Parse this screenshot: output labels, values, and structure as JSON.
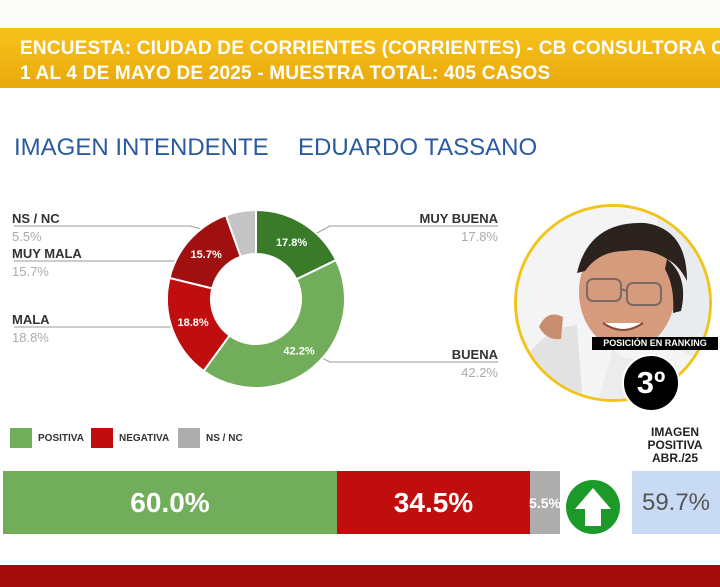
{
  "header": {
    "line1": "ENCUESTA: CIUDAD DE CORRIENTES (CORRIENTES) - CB CONSULTORA OP",
    "line2": "1 AL 4 DE MAYO DE 2025 - MUESTRA TOTAL: 405 CASOS"
  },
  "subtitle": {
    "left": "IMAGEN INTENDENTE",
    "right": "EDUARDO TASSANO"
  },
  "colors": {
    "header_bg": "#f0b515",
    "muy_buena": "#3a7b2a",
    "buena": "#71ad5a",
    "mala": "#c00d0d",
    "muy_mala": "#a01010",
    "ns_nc": "#c4c4c4",
    "positiva": "#71ad5a",
    "negativa": "#c00d0d",
    "arrow_bg": "#1c9a29",
    "prev_box": "#c9dbf4",
    "footer": "#a20c0c",
    "title_blue": "#2b5b9e"
  },
  "chart_data": [
    {
      "type": "pie",
      "variant": "donut",
      "labels": [
        "MUY BUENA",
        "BUENA",
        "MALA",
        "MUY MALA",
        "NS / NC"
      ],
      "values": [
        17.8,
        42.2,
        18.8,
        15.7,
        5.5
      ],
      "value_labels": [
        "17.8%",
        "42.2%",
        "18.8%",
        "15.7%",
        "5.5%"
      ],
      "colors": [
        "#3a7b2a",
        "#71ad5a",
        "#c00d0d",
        "#a01010",
        "#c4c4c4"
      ]
    },
    {
      "type": "bar",
      "orientation": "horizontal",
      "stacked": true,
      "categories": [
        "POSITIVA",
        "NEGATIVA",
        "NS / NC"
      ],
      "values": [
        60.0,
        34.5,
        5.5
      ],
      "value_labels": [
        "60.0%",
        "34.5%",
        "5.5%"
      ],
      "colors": [
        "#71ad5a",
        "#c00d0d",
        "#adadad"
      ],
      "legend": [
        "POSITIVA",
        "NEGATIVA",
        "NS / NC"
      ]
    }
  ],
  "ranking": {
    "label": "POSICIÓN EN RANKING",
    "value": "3º"
  },
  "previous": {
    "label": "IMAGEN\nPOSITIVA\nABR./25",
    "value": "59.7%",
    "trend": "up-arrow-icon"
  }
}
